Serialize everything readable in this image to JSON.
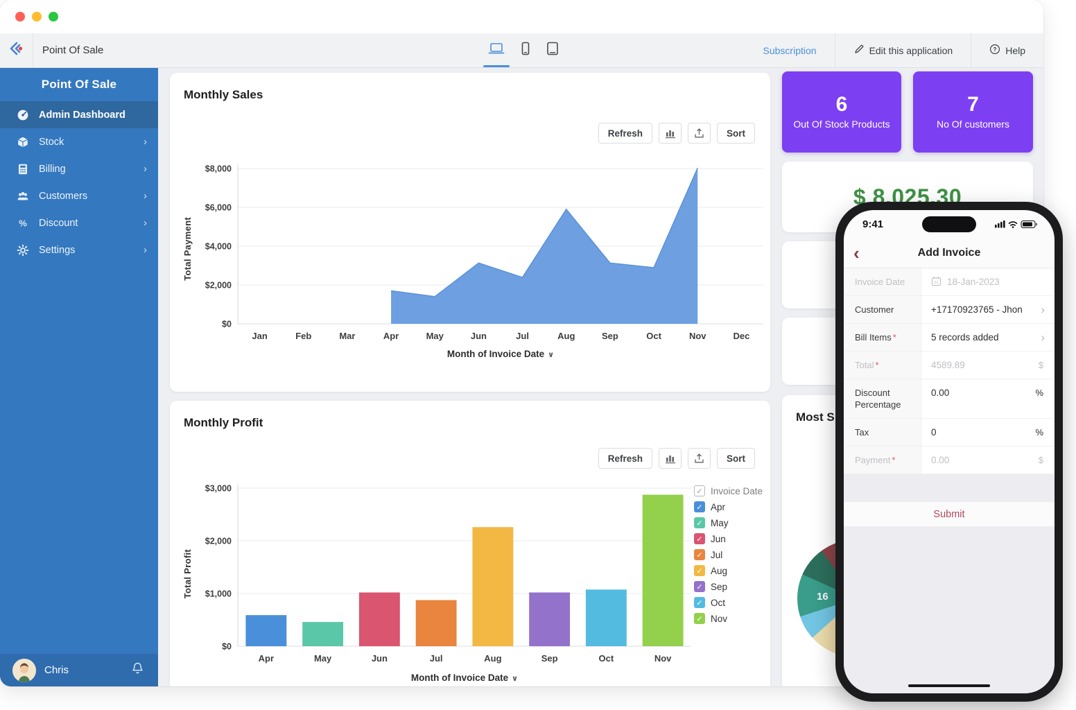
{
  "toolbar": {
    "app_title": "Point Of Sale",
    "subscription_label": "Subscription",
    "edit_label": "Edit this application",
    "help_label": "Help"
  },
  "sidebar": {
    "title": "Point Of Sale",
    "items": [
      {
        "label": "Admin Dashboard"
      },
      {
        "label": "Stock"
      },
      {
        "label": "Billing"
      },
      {
        "label": "Customers"
      },
      {
        "label": "Discount"
      },
      {
        "label": "Settings"
      }
    ],
    "footer": {
      "user_name": "Chris"
    }
  },
  "buttons": {
    "refresh": "Refresh",
    "sort": "Sort"
  },
  "kpis": {
    "out_of_stock": {
      "value": "6",
      "label": "Out Of Stock Products"
    },
    "customers": {
      "value": "7",
      "label": "No Of customers"
    },
    "total_amount": "$ 8,025.30"
  },
  "most_selling": {
    "title_visible": "Most S",
    "pie_visible_label": "16"
  },
  "chart_data": [
    {
      "type": "area",
      "title": "Monthly Sales",
      "ylabel": "Total Payment",
      "xlabel": "Month of Invoice Date",
      "x_categories": [
        "Jan",
        "Feb",
        "Mar",
        "Apr",
        "May",
        "Jun",
        "Jul",
        "Aug",
        "Sep",
        "Oct",
        "Nov",
        "Dec"
      ],
      "series": [
        {
          "name": "Total Payment",
          "start_index": 3,
          "values": [
            1700,
            1400,
            3130,
            2390,
            5900,
            3130,
            2890,
            8025
          ]
        }
      ],
      "ylim": [
        0,
        8000
      ],
      "ytick_values": [
        0,
        2000,
        4000,
        6000,
        8000
      ],
      "ytick_labels": [
        "$0",
        "$2,000",
        "$4,000",
        "$6,000",
        "$8,000"
      ],
      "color": "#6d9fe1",
      "stroke": "#5d93da",
      "grid": true,
      "caret": "∨"
    },
    {
      "type": "bar",
      "title": "Monthly Profit",
      "ylabel": "Total Profit",
      "xlabel": "Month of Invoice Date",
      "categories": [
        "Apr",
        "May",
        "Jun",
        "Jul",
        "Aug",
        "Sep",
        "Oct",
        "Nov"
      ],
      "values": [
        590,
        460,
        1020,
        875,
        2260,
        1020,
        1075,
        2875
      ],
      "colors": [
        "#4a8fd9",
        "#5ac8a8",
        "#d95570",
        "#e9853e",
        "#f2b843",
        "#9372cb",
        "#54bbe0",
        "#93d04b"
      ],
      "ylim": [
        0,
        3000
      ],
      "ytick_values": [
        0,
        1000,
        2000,
        3000
      ],
      "ytick_labels": [
        "$0",
        "$1,000",
        "$2,000",
        "$3,000"
      ],
      "grid": true,
      "legend_position": "right",
      "legend_title": "Invoice Date",
      "legend_items": [
        "Apr",
        "May",
        "Jun",
        "Jul",
        "Aug",
        "Sep",
        "Oct",
        "Nov"
      ],
      "caret": "∨"
    },
    {
      "type": "pie",
      "title_visible": "Most S",
      "occluded_by_phone": true,
      "visible_label": "16",
      "slices": [
        {
          "color": "#4f8f6b",
          "from": 4,
          "to": 58,
          "hidden": true
        },
        {
          "color": "#cdbd85",
          "from": 58,
          "to": 112,
          "hidden": true
        },
        {
          "color": "#7a9ec4",
          "from": 112,
          "to": 165,
          "hidden": true
        },
        {
          "color": "#ecdcab",
          "from": 165,
          "to": 228,
          "label": "16"
        },
        {
          "color": "#72c5e3",
          "from": 228,
          "to": 252
        },
        {
          "color": "#3a9c8a",
          "from": 252,
          "to": 294
        },
        {
          "color": "#2c6e5c",
          "from": 294,
          "to": 324
        },
        {
          "color": "#8c4348",
          "from": 324,
          "to": 341
        },
        {
          "color": "#79333c",
          "from": 341,
          "to": 348
        },
        {
          "color": "#c44d31",
          "from": 348,
          "to": 356
        },
        {
          "color": "#3c61a6",
          "from": 356,
          "to": 360
        }
      ]
    }
  ],
  "phone": {
    "status": {
      "time": "9:41"
    },
    "header": {
      "title": "Add Invoice"
    },
    "rows": [
      {
        "label": "Invoice Date",
        "value": "18-Jan-2023"
      },
      {
        "label": "Customer",
        "value": "+17170923765 - Jhon"
      },
      {
        "label": "Bill Items",
        "required": "*",
        "value": "5 records added"
      },
      {
        "label": "Total",
        "required": "*",
        "value": "4589.89",
        "suffix": "$"
      },
      {
        "label": "Discount Percentage",
        "value": "0.00",
        "suffix": "%"
      },
      {
        "label": "Tax",
        "value": "0",
        "suffix": "%"
      },
      {
        "label": "Payment",
        "required": "*",
        "value": "0.00",
        "suffix": "$"
      }
    ],
    "submit_label": "Submit"
  }
}
